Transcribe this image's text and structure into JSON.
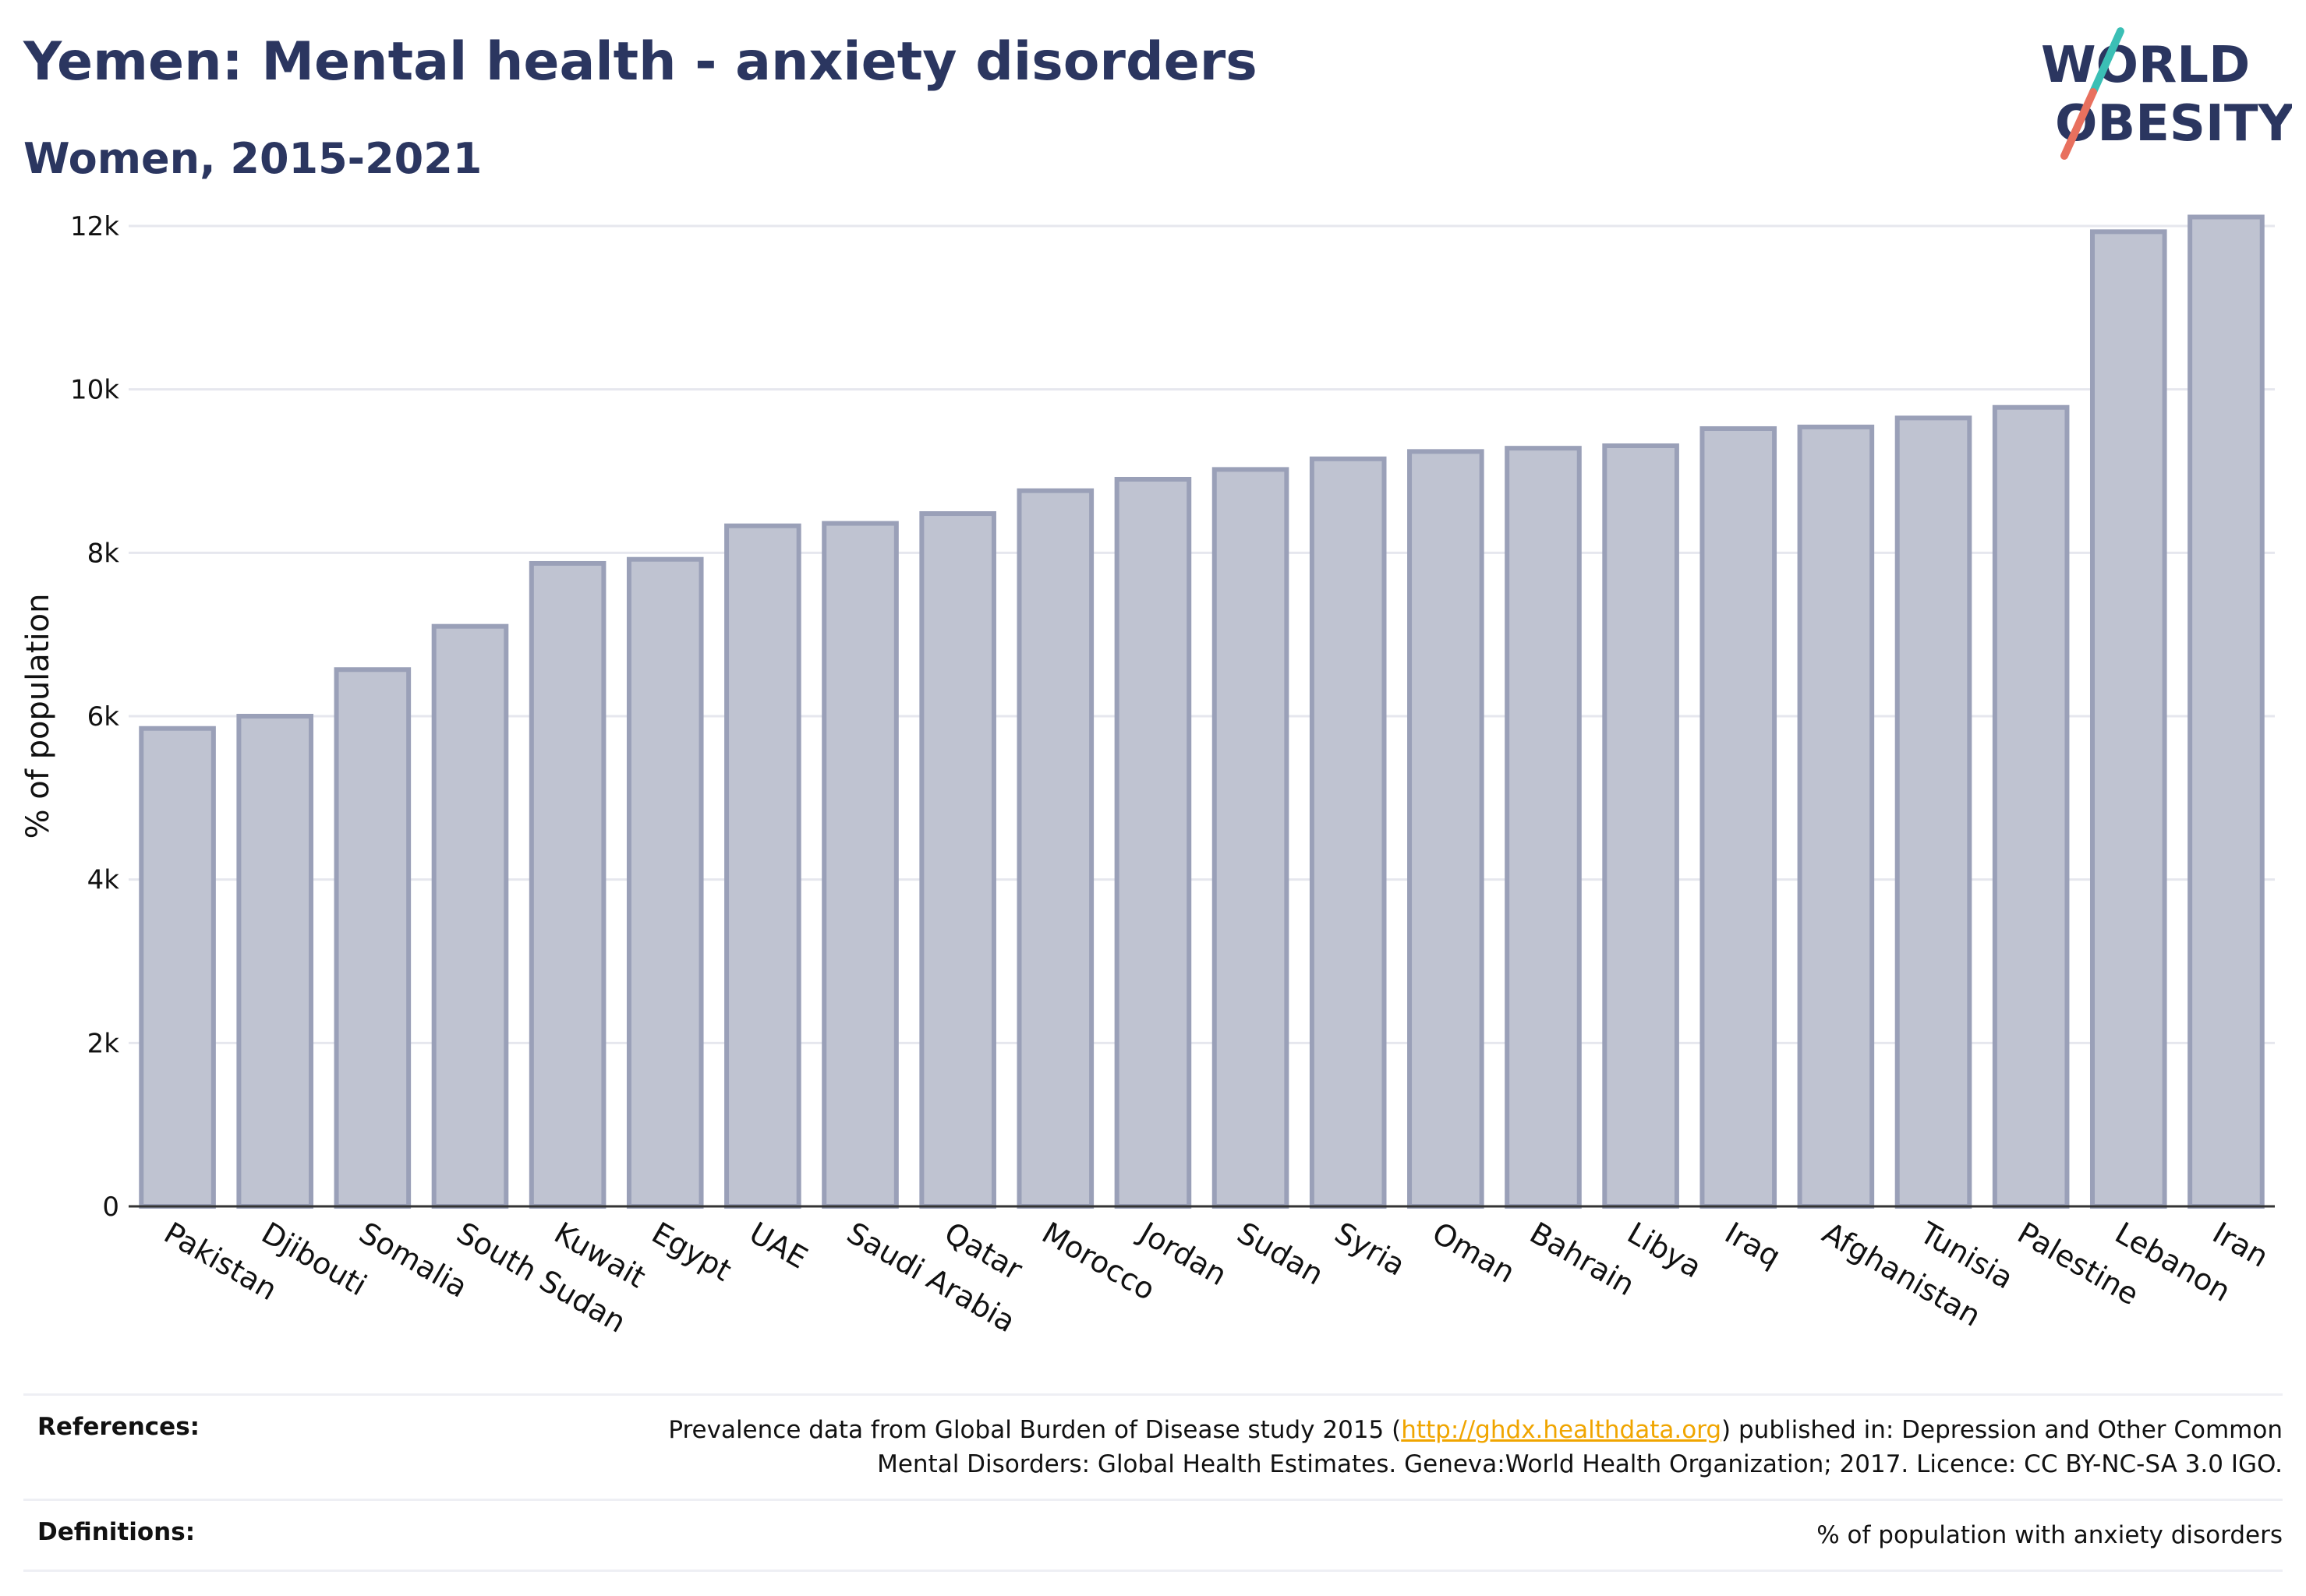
{
  "header": {
    "title": "Yemen: Mental health - anxiety disorders",
    "subtitle": "Women, 2015-2021"
  },
  "logo": {
    "line1": "WORLD",
    "line2": "OBESITY",
    "slash_colors": [
      "#3bbfb5",
      "#e8705e"
    ],
    "text_color": "#2b3660"
  },
  "chart_data": {
    "type": "bar",
    "categories": [
      "Pakistan",
      "Djibouti",
      "Somalia",
      "South Sudan",
      "Kuwait",
      "Egypt",
      "UAE",
      "Saudi Arabia",
      "Qatar",
      "Morocco",
      "Jordan",
      "Sudan",
      "Syria",
      "Oman",
      "Bahrain",
      "Libya",
      "Iraq",
      "Afghanistan",
      "Tunisia",
      "Palestine",
      "Lebanon",
      "Iran"
    ],
    "values": [
      5850,
      6000,
      6570,
      7100,
      7870,
      7920,
      8330,
      8360,
      8480,
      8760,
      8900,
      9020,
      9150,
      9240,
      9280,
      9310,
      9520,
      9540,
      9650,
      9780,
      11930,
      12110
    ],
    "title": "Yemen: Mental health - anxiety disorders",
    "subtitle": "Women, 2015-2021",
    "xlabel": "",
    "ylabel": "% of population",
    "ylim": [
      0,
      12000
    ],
    "yticks": [
      0,
      2000,
      4000,
      6000,
      8000,
      10000,
      12000
    ],
    "ytick_labels": [
      "0",
      "2k",
      "4k",
      "6k",
      "8k",
      "10k",
      "12k"
    ],
    "grid": true,
    "legend": "none",
    "bar_fill": "#bfc3d1",
    "bar_stroke": "#9aa0b8"
  },
  "footer": {
    "references_label": "References:",
    "references_before": "Prevalence data from Global Burden of Disease study 2015 (",
    "references_link": "http://ghdx.healthdata.org",
    "references_after": ") published in: Depression and Other Common",
    "references_line2": "Mental Disorders: Global Health Estimates. Geneva:World Health Organization; 2017. Licence: CC BY-NC-SA 3.0 IGO.",
    "definitions_label": "Definitions:",
    "definitions_text": "% of population with anxiety disorders"
  }
}
